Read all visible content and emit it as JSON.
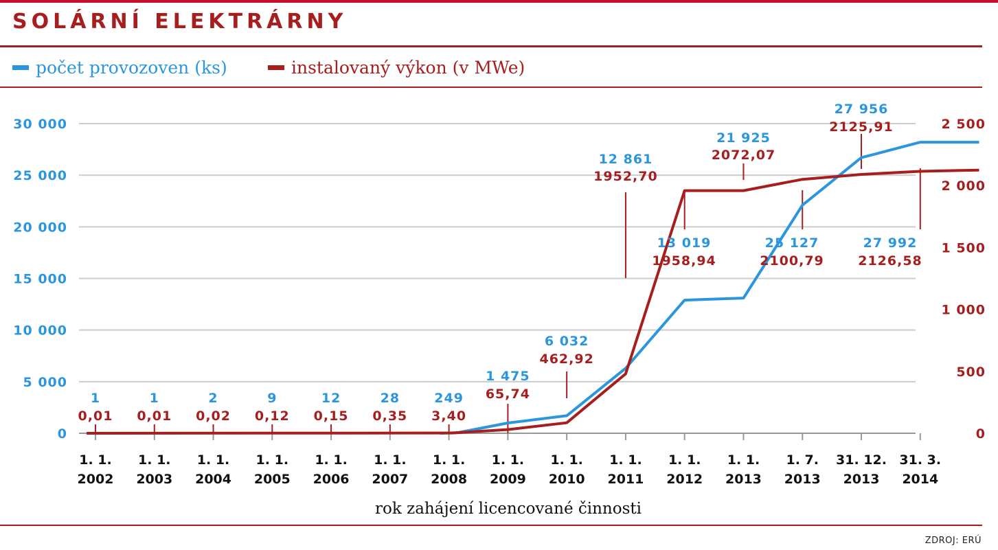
{
  "header": {
    "title": "SOLÁRNÍ ELEKTRÁRNY"
  },
  "legend": [
    {
      "label": "počet provozoven (ks)",
      "color": "#2b96db"
    },
    {
      "label": "instalovaný výkon (v MWe)",
      "color": "#a61e1e"
    }
  ],
  "footer": {
    "source": "ZDROJ: ERÚ"
  },
  "colors": {
    "blue": "#2b96db",
    "red": "#a61e1e",
    "accent_bar": "#c8102e",
    "grid": "#cccccc",
    "text": "#111111"
  },
  "chart_data": {
    "type": "line",
    "xlabel": "rok zahájení licencované činnosti",
    "x": [
      [
        "1. 1.",
        "2002"
      ],
      [
        "1. 1.",
        "2003"
      ],
      [
        "1. 1.",
        "2004"
      ],
      [
        "1. 1.",
        "2005"
      ],
      [
        "1. 1.",
        "2006"
      ],
      [
        "1. 1.",
        "2007"
      ],
      [
        "1. 1.",
        "2008"
      ],
      [
        "1. 1.",
        "2009"
      ],
      [
        "1. 1.",
        "2010"
      ],
      [
        "1. 1.",
        "2011"
      ],
      [
        "1. 1.",
        "2012"
      ],
      [
        "1. 1.",
        "2013"
      ],
      [
        "1. 7.",
        "2013"
      ],
      [
        "31. 12.",
        "2013"
      ],
      [
        "31. 3.",
        "2014"
      ]
    ],
    "y_left": {
      "ylim": [
        0,
        30000
      ],
      "ticks": [
        0,
        5000,
        10000,
        15000,
        20000,
        25000,
        30000
      ],
      "tick_labels": [
        "0",
        "5 000",
        "10 000",
        "15 000",
        "20 000",
        "25 000",
        "30 000"
      ]
    },
    "y_right": {
      "ylim": [
        0,
        2500
      ],
      "ticks": [
        0,
        500,
        1000,
        1500,
        2000,
        2500
      ],
      "tick_labels": [
        "0",
        "500",
        "1 000",
        "1 500",
        "2 000",
        "2 500"
      ]
    },
    "grid": true,
    "legend_position": "top-left",
    "series": [
      {
        "name": "počet provozoven (ks)",
        "axis": "left",
        "color": "#2b96db",
        "points": [
          [
            6.35,
            0
          ],
          [
            6.65,
            60
          ],
          [
            7.5,
            1000
          ],
          [
            8.5,
            1700
          ],
          [
            9.5,
            6300
          ],
          [
            10.5,
            12900
          ],
          [
            11.5,
            13100
          ],
          [
            12.5,
            22100
          ],
          [
            13.5,
            26700
          ],
          [
            14.5,
            28200
          ],
          [
            15.5,
            28200
          ]
        ],
        "labels": [
          {
            "x": 0,
            "text": "1"
          },
          {
            "x": 1,
            "text": "1"
          },
          {
            "x": 2,
            "text": "2"
          },
          {
            "x": 3,
            "text": "9"
          },
          {
            "x": 4,
            "text": "12"
          },
          {
            "x": 5,
            "text": "28"
          },
          {
            "x": 6,
            "text": "249"
          },
          {
            "x": 7,
            "text": "1 475"
          },
          {
            "x": 8,
            "text": "6 032"
          },
          {
            "x": 9,
            "text": "12 861"
          },
          {
            "x": 10,
            "text": "13 019"
          },
          {
            "x": 11,
            "text": "21 925"
          },
          {
            "x": 12,
            "text": "25 127"
          },
          {
            "x": 13,
            "text": "27 956"
          },
          {
            "x": 14,
            "text": "27 992"
          }
        ]
      },
      {
        "name": "instalovaný výkon (v MWe)",
        "axis": "right",
        "color": "#a61e1e",
        "points": [
          [
            0.35,
            0
          ],
          [
            6.55,
            2
          ],
          [
            7.5,
            30
          ],
          [
            8.5,
            85
          ],
          [
            9.5,
            480
          ],
          [
            10.5,
            1958.9
          ],
          [
            11.5,
            1958.9
          ],
          [
            12.5,
            2050
          ],
          [
            13.5,
            2090
          ],
          [
            14.5,
            2115
          ],
          [
            15.5,
            2125
          ]
        ],
        "labels": [
          {
            "x": 0,
            "text": "0,01"
          },
          {
            "x": 1,
            "text": "0,01"
          },
          {
            "x": 2,
            "text": "0,02"
          },
          {
            "x": 3,
            "text": "0,12"
          },
          {
            "x": 4,
            "text": "0,15"
          },
          {
            "x": 5,
            "text": "0,35"
          },
          {
            "x": 6,
            "text": "3,40"
          },
          {
            "x": 7,
            "text": "65,74"
          },
          {
            "x": 8,
            "text": "462,92"
          },
          {
            "x": 9,
            "text": "1952,70"
          },
          {
            "x": 10,
            "text": "1958,94"
          },
          {
            "x": 11,
            "text": "2072,07"
          },
          {
            "x": 12,
            "text": "2100,79"
          },
          {
            "x": 13,
            "text": "2125,91"
          },
          {
            "x": 14,
            "text": "2126,58"
          }
        ]
      }
    ]
  }
}
